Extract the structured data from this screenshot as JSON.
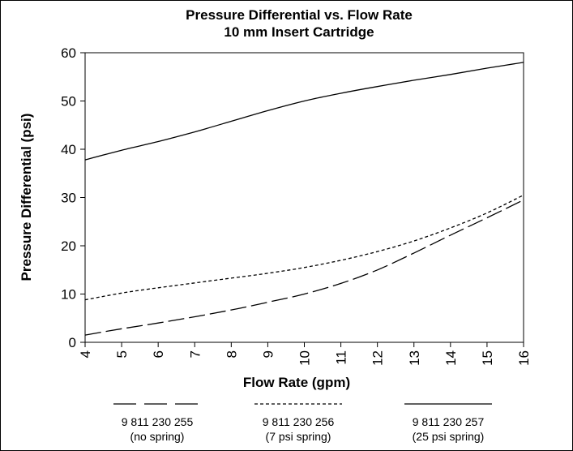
{
  "chart_data": {
    "type": "line",
    "title": "Pressure Differential vs. Flow Rate",
    "subtitle": "10 mm Insert Cartridge",
    "xlabel": "Flow Rate (gpm)",
    "ylabel": "Pressure Differential (psi)",
    "xlim": [
      4,
      16
    ],
    "ylim": [
      0,
      60
    ],
    "x_ticks": [
      "4",
      "5",
      "6",
      "7",
      "8",
      "9",
      "10",
      "11",
      "12",
      "13",
      "14",
      "15",
      "16"
    ],
    "y_ticks": [
      "0",
      "10",
      "20",
      "30",
      "40",
      "50",
      "60"
    ],
    "grid": false,
    "legend_position": "bottom",
    "series": [
      {
        "name": "9 811 230 255",
        "note": "(no spring)",
        "line_style": "long-dash",
        "x": [
          4,
          5,
          6,
          7,
          8,
          9,
          10,
          11,
          12,
          13,
          14,
          15,
          16
        ],
        "y": [
          1.5,
          2.8,
          4.0,
          5.3,
          6.7,
          8.3,
          10.0,
          12.2,
          15.0,
          18.5,
          22.2,
          25.8,
          29.5
        ]
      },
      {
        "name": "9 811 230 256",
        "note": "(7 psi spring)",
        "line_style": "short-dash",
        "x": [
          4,
          5,
          6,
          7,
          8,
          9,
          10,
          11,
          12,
          13,
          14,
          15,
          16
        ],
        "y": [
          8.8,
          10.2,
          11.3,
          12.3,
          13.3,
          14.3,
          15.5,
          17.0,
          18.8,
          21.0,
          23.7,
          26.8,
          30.5
        ]
      },
      {
        "name": "9 811 230 257",
        "note": "(25 psi spring)",
        "line_style": "solid",
        "x": [
          4,
          5,
          6,
          7,
          8,
          9,
          10,
          11,
          12,
          13,
          14,
          15,
          16
        ],
        "y": [
          37.8,
          39.8,
          41.6,
          43.6,
          45.8,
          48.0,
          50.0,
          51.6,
          53.0,
          54.3,
          55.5,
          56.8,
          58.0
        ]
      }
    ]
  }
}
